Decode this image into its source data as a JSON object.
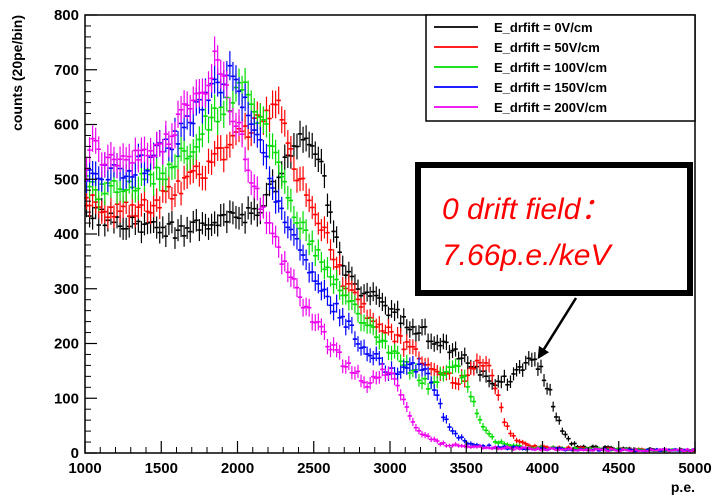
{
  "chart_data": {
    "type": "scatter",
    "title": "",
    "xlabel": "p.e.",
    "ylabel": "counts (20pe/bin)",
    "xlim": [
      1000,
      5000
    ],
    "ylim": [
      0,
      800
    ],
    "x_ticks": [
      1000,
      1500,
      2000,
      2500,
      3000,
      3500,
      4000,
      4500,
      5000
    ],
    "y_ticks": [
      0,
      100,
      200,
      300,
      400,
      500,
      600,
      700,
      800
    ],
    "grid": false,
    "legend_position": "top-right",
    "series": [
      {
        "name": "E_drfift = 0V/cm",
        "color": "#000000",
        "points": [
          [
            1000,
            440
          ],
          [
            1100,
            430
          ],
          [
            1200,
            425
          ],
          [
            1300,
            420
          ],
          [
            1400,
            415
          ],
          [
            1500,
            410
          ],
          [
            1600,
            405
          ],
          [
            1700,
            410
          ],
          [
            1800,
            415
          ],
          [
            1900,
            420
          ],
          [
            2000,
            430
          ],
          [
            2100,
            440
          ],
          [
            2200,
            470
          ],
          [
            2300,
            520
          ],
          [
            2400,
            570
          ],
          [
            2450,
            590
          ],
          [
            2500,
            570
          ],
          [
            2550,
            520
          ],
          [
            2600,
            450
          ],
          [
            2650,
            400
          ],
          [
            2700,
            330
          ],
          [
            2800,
            300
          ],
          [
            2900,
            280
          ],
          [
            3000,
            260
          ],
          [
            3100,
            240
          ],
          [
            3200,
            225
          ],
          [
            3300,
            205
          ],
          [
            3400,
            190
          ],
          [
            3500,
            170
          ],
          [
            3600,
            150
          ],
          [
            3700,
            130
          ],
          [
            3800,
            135
          ],
          [
            3850,
            150
          ],
          [
            3900,
            165
          ],
          [
            3950,
            170
          ],
          [
            4000,
            150
          ],
          [
            4050,
            110
          ],
          [
            4100,
            60
          ],
          [
            4150,
            30
          ],
          [
            4200,
            15
          ],
          [
            4300,
            10
          ],
          [
            4500,
            8
          ],
          [
            4700,
            6
          ],
          [
            5000,
            5
          ]
        ]
      },
      {
        "name": "E_drfift = 50V/cm",
        "color": "#ff0000",
        "points": [
          [
            1000,
            470
          ],
          [
            1100,
            450
          ],
          [
            1200,
            440
          ],
          [
            1300,
            445
          ],
          [
            1400,
            450
          ],
          [
            1500,
            460
          ],
          [
            1600,
            480
          ],
          [
            1700,
            500
          ],
          [
            1800,
            520
          ],
          [
            1900,
            550
          ],
          [
            2000,
            580
          ],
          [
            2100,
            600
          ],
          [
            2200,
            610
          ],
          [
            2250,
            640
          ],
          [
            2300,
            600
          ],
          [
            2400,
            500
          ],
          [
            2500,
            450
          ],
          [
            2550,
            420
          ],
          [
            2600,
            380
          ],
          [
            2700,
            310
          ],
          [
            2800,
            270
          ],
          [
            2900,
            240
          ],
          [
            3000,
            220
          ],
          [
            3100,
            195
          ],
          [
            3200,
            175
          ],
          [
            3300,
            155
          ],
          [
            3400,
            135
          ],
          [
            3450,
            130
          ],
          [
            3500,
            140
          ],
          [
            3550,
            160
          ],
          [
            3600,
            170
          ],
          [
            3650,
            150
          ],
          [
            3700,
            110
          ],
          [
            3750,
            60
          ],
          [
            3800,
            30
          ],
          [
            3900,
            15
          ],
          [
            4000,
            10
          ],
          [
            4200,
            8
          ],
          [
            4500,
            6
          ],
          [
            5000,
            5
          ]
        ]
      },
      {
        "name": "E_drfift = 100V/cm",
        "color": "#00dd00",
        "points": [
          [
            1000,
            490
          ],
          [
            1100,
            480
          ],
          [
            1200,
            485
          ],
          [
            1300,
            490
          ],
          [
            1400,
            500
          ],
          [
            1500,
            510
          ],
          [
            1600,
            530
          ],
          [
            1700,
            560
          ],
          [
            1800,
            600
          ],
          [
            1900,
            630
          ],
          [
            2000,
            650
          ],
          [
            2050,
            680
          ],
          [
            2100,
            640
          ],
          [
            2200,
            580
          ],
          [
            2300,
            500
          ],
          [
            2400,
            420
          ],
          [
            2500,
            380
          ],
          [
            2600,
            330
          ],
          [
            2700,
            290
          ],
          [
            2800,
            250
          ],
          [
            2900,
            215
          ],
          [
            3000,
            185
          ],
          [
            3100,
            160
          ],
          [
            3200,
            135
          ],
          [
            3250,
            125
          ],
          [
            3300,
            135
          ],
          [
            3350,
            150
          ],
          [
            3400,
            160
          ],
          [
            3450,
            155
          ],
          [
            3500,
            130
          ],
          [
            3550,
            90
          ],
          [
            3600,
            50
          ],
          [
            3700,
            20
          ],
          [
            3800,
            12
          ],
          [
            4000,
            9
          ],
          [
            4300,
            7
          ],
          [
            4700,
            5
          ],
          [
            5000,
            5
          ]
        ]
      },
      {
        "name": "E_drfift = 150V/cm",
        "color": "#0000ff",
        "points": [
          [
            1000,
            500
          ],
          [
            1100,
            510
          ],
          [
            1200,
            515
          ],
          [
            1300,
            520
          ],
          [
            1400,
            530
          ],
          [
            1500,
            550
          ],
          [
            1600,
            580
          ],
          [
            1700,
            610
          ],
          [
            1800,
            650
          ],
          [
            1900,
            680
          ],
          [
            1950,
            700
          ],
          [
            2000,
            670
          ],
          [
            2100,
            600
          ],
          [
            2200,
            520
          ],
          [
            2300,
            430
          ],
          [
            2400,
            370
          ],
          [
            2500,
            320
          ],
          [
            2600,
            280
          ],
          [
            2700,
            240
          ],
          [
            2800,
            205
          ],
          [
            2900,
            175
          ],
          [
            3000,
            150
          ],
          [
            3050,
            140
          ],
          [
            3100,
            150
          ],
          [
            3150,
            160
          ],
          [
            3200,
            155
          ],
          [
            3250,
            140
          ],
          [
            3300,
            110
          ],
          [
            3350,
            70
          ],
          [
            3400,
            40
          ],
          [
            3500,
            20
          ],
          [
            3600,
            12
          ],
          [
            3800,
            9
          ],
          [
            4100,
            7
          ],
          [
            4500,
            5
          ],
          [
            5000,
            5
          ]
        ]
      },
      {
        "name": "E_drfift = 200V/cm",
        "color": "#ee00ee",
        "points": [
          [
            1000,
            520
          ],
          [
            1050,
            560
          ],
          [
            1100,
            540
          ],
          [
            1200,
            530
          ],
          [
            1300,
            535
          ],
          [
            1400,
            540
          ],
          [
            1500,
            555
          ],
          [
            1600,
            600
          ],
          [
            1700,
            640
          ],
          [
            1800,
            680
          ],
          [
            1850,
            720
          ],
          [
            1900,
            680
          ],
          [
            2000,
            600
          ],
          [
            2100,
            500
          ],
          [
            2200,
            420
          ],
          [
            2300,
            350
          ],
          [
            2400,
            290
          ],
          [
            2500,
            240
          ],
          [
            2600,
            200
          ],
          [
            2700,
            165
          ],
          [
            2800,
            140
          ],
          [
            2850,
            125
          ],
          [
            2900,
            135
          ],
          [
            2950,
            150
          ],
          [
            3000,
            145
          ],
          [
            3050,
            125
          ],
          [
            3100,
            95
          ],
          [
            3150,
            60
          ],
          [
            3200,
            35
          ],
          [
            3300,
            20
          ],
          [
            3400,
            14
          ],
          [
            3600,
            10
          ],
          [
            4000,
            7
          ],
          [
            4500,
            5
          ],
          [
            5000,
            5
          ]
        ]
      }
    ],
    "annotations": [
      {
        "text_line1": "0 drift field：",
        "text_line2": "7.66p.e./keV",
        "color": "#ff0000",
        "arrow_target": [
          3900,
          165
        ]
      }
    ]
  }
}
